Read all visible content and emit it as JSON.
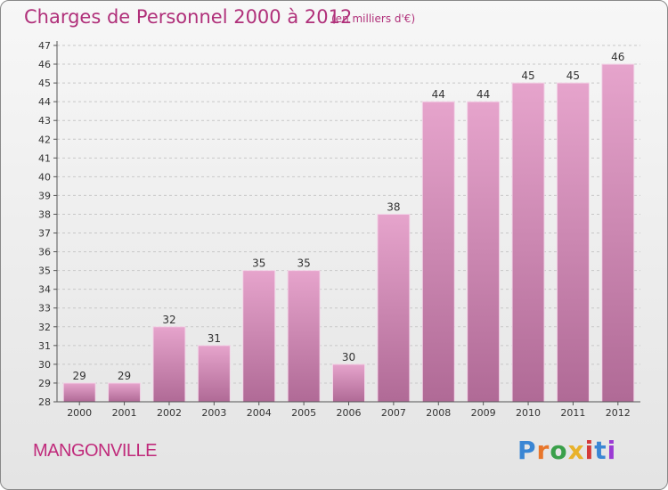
{
  "header": {
    "title": "Charges de Personnel 2000 à 2012",
    "subtitle": "(en milliers d'€)"
  },
  "footer": {
    "place": "MANGONVILLE",
    "logo_text": "Proxiti",
    "logo_colors": [
      "#3a86d4",
      "#e8762b",
      "#3aa04a",
      "#e8b22b",
      "#d43a3a",
      "#3a86d4",
      "#9b3ad4"
    ]
  },
  "colors": {
    "title": "#b0307a",
    "bar_top": "#e6a4cc",
    "bar_bottom": "#b06a96",
    "grid": "#c8c8c8",
    "axis_text": "#333333"
  },
  "chart_data": {
    "type": "bar",
    "categories": [
      "2000",
      "2001",
      "2002",
      "2003",
      "2004",
      "2005",
      "2006",
      "2007",
      "2008",
      "2009",
      "2010",
      "2011",
      "2012"
    ],
    "values": [
      29,
      29,
      32,
      31,
      35,
      35,
      30,
      38,
      44,
      44,
      45,
      45,
      46
    ],
    "data_labels": [
      "29",
      "29",
      "32",
      "31",
      "35",
      "35",
      "30",
      "38",
      "44",
      "44",
      "45",
      "45",
      "46"
    ],
    "title": "Charges de Personnel 2000 à 2012",
    "xlabel": "",
    "ylabel": "",
    "ylim": [
      28,
      47
    ],
    "yticks": [
      "28",
      "29",
      "30",
      "31",
      "32",
      "33",
      "34",
      "35",
      "36",
      "37",
      "38",
      "39",
      "40",
      "41",
      "42",
      "43",
      "44",
      "45",
      "46",
      "47"
    ],
    "grid": true,
    "legend": "none"
  }
}
